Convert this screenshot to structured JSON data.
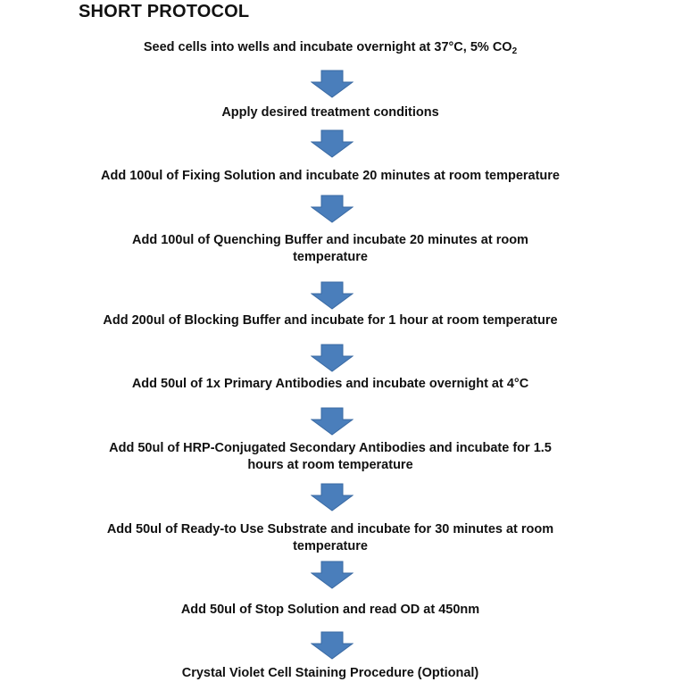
{
  "title": "SHORT PROTOCOL",
  "arrow_color": "#4a7ebb",
  "steps": [
    {
      "text": "Seed cells into wells and incubate overnight at 37°C, 5% CO",
      "sub": "2"
    },
    {
      "text": "Apply desired treatment conditions"
    },
    {
      "text": "Add 100ul of Fixing Solution and incubate 20 minutes at room temperature"
    },
    {
      "text": "Add 100ul of Quenching Buffer and incubate 20 minutes at room temperature"
    },
    {
      "text": "Add 200ul of Blocking Buffer and incubate for 1 hour at room temperature"
    },
    {
      "text": "Add 50ul of 1x Primary Antibodies and incubate overnight at 4°C"
    },
    {
      "text": "Add 50ul of HRP-Conjugated Secondary Antibodies and incubate for 1.5 hours at room temperature"
    },
    {
      "text": "Add 50ul of Ready-to Use Substrate and incubate for 30 minutes at room temperature"
    },
    {
      "text": "Add 50ul of Stop Solution and read OD at 450nm"
    },
    {
      "text": "Crystal Violet Cell Staining Procedure (Optional)"
    }
  ]
}
